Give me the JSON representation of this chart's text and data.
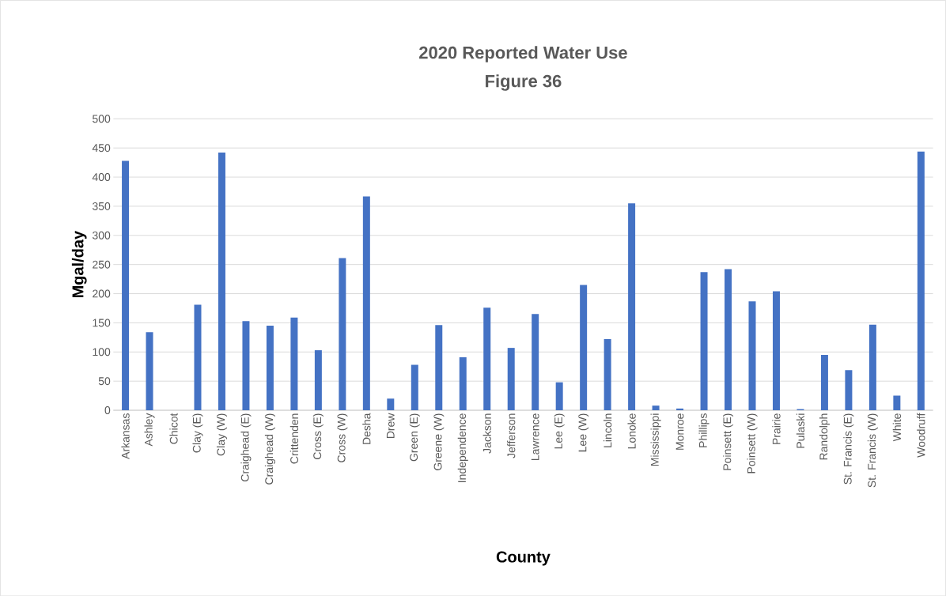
{
  "chart_data": {
    "type": "bar",
    "title": "2020 Reported Water Use",
    "subtitle": "Figure 36",
    "xlabel": "County",
    "ylabel": "Mgal/day",
    "categories": [
      "Arkansas",
      "Ashley",
      "Chicot",
      "Clay (E)",
      "Clay (W)",
      "Craighead (E)",
      "Craighead (W)",
      "Crittenden",
      "Cross (E)",
      "Cross (W)",
      "Desha",
      "Drew",
      "Green (E)",
      "Greene (W)",
      "Independence",
      "Jackson",
      "Jefferson",
      "Lawrence",
      "Lee (E)",
      "Lee (W)",
      "Lincoln",
      "Lonoke",
      "Mississippi",
      "Monroe",
      "Phillips",
      "Poinsett (E)",
      "Poinsett (W)",
      "Prairie",
      "Pulaski",
      "Randolph",
      "St. Francis (E)",
      "St. Francis (W)",
      "White",
      "Woodruff"
    ],
    "values": [
      428,
      134,
      0,
      181,
      442,
      153,
      145,
      159,
      103,
      261,
      367,
      20,
      78,
      146,
      91,
      176,
      107,
      165,
      48,
      215,
      122,
      355,
      8,
      3,
      237,
      242,
      187,
      204,
      2,
      95,
      69,
      147,
      25,
      444
    ],
    "color": "#4472c4",
    "ylim": [
      0,
      500
    ],
    "yticks": [
      0,
      50,
      100,
      150,
      200,
      250,
      300,
      350,
      400,
      450,
      500
    ],
    "grid": "y"
  }
}
